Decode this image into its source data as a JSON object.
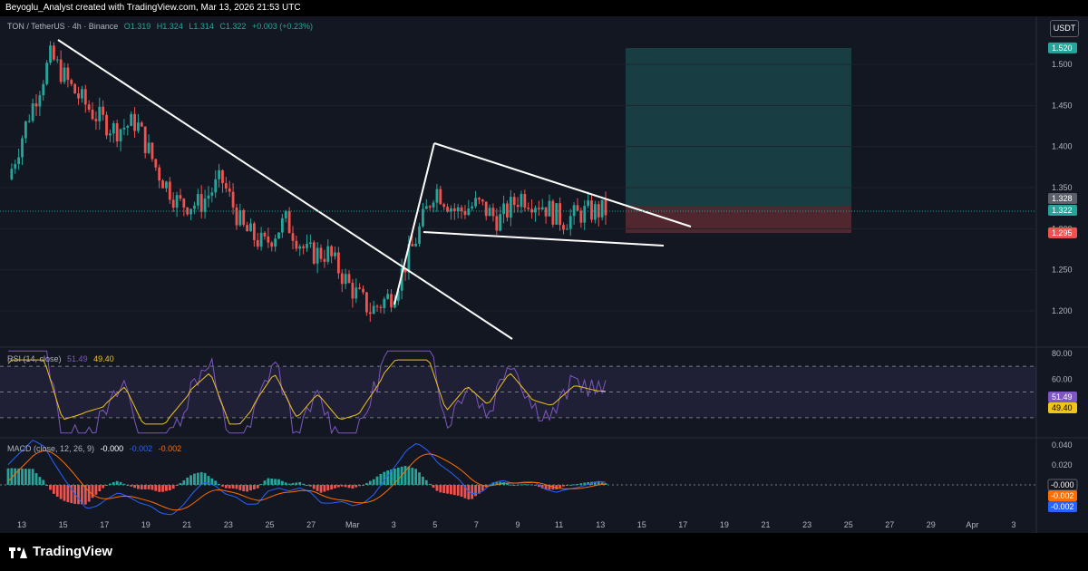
{
  "header": {
    "attribution": "Beyoglu_Analyst created with TradingView.com, Mar 13, 2026 21:53 UTC"
  },
  "legend": {
    "symbol": "TON / TetherUS · 4h · Binance",
    "open": "O1.319",
    "high": "H1.324",
    "low": "L1.314",
    "close": "C1.322",
    "change": "+0.003 (+0.23%)"
  },
  "currency_button": "USDT",
  "brand": "TradingView",
  "colors": {
    "up": "#26a69a",
    "down": "#ef5350",
    "rsi": "#7e57c2",
    "rsi_ma": "#f0c419",
    "macd": "#2962ff",
    "signal": "#ff6d00",
    "background": "#131722"
  },
  "chart_data": [
    {
      "type": "candlestick",
      "title": "TON / TetherUS · 4h · Binance",
      "x_ticks": [
        "13",
        "15",
        "17",
        "19",
        "21",
        "23",
        "25",
        "27",
        "Mar",
        "3",
        "5",
        "7",
        "9",
        "11",
        "13",
        "15",
        "17",
        "19",
        "21",
        "23",
        "25",
        "27",
        "29",
        "Apr",
        "3"
      ],
      "y_ticks": [
        1.2,
        1.25,
        1.3,
        1.35,
        1.4,
        1.45,
        1.5
      ],
      "y_range": [
        1.16,
        1.56
      ],
      "price_labels": [
        {
          "text": "1.520",
          "value": 1.52,
          "color": "#26a69a"
        },
        {
          "text": "1.328",
          "value": 1.328,
          "color": "#5d606b"
        },
        {
          "text": "1.322",
          "value": 1.322,
          "color": "#26a69a"
        },
        {
          "text": "1.295",
          "value": 1.295,
          "color": "#ef5350"
        }
      ],
      "close_path": [
        [
          "13",
          1.36
        ],
        [
          "14",
          1.44
        ],
        [
          "15",
          1.51
        ],
        [
          "16",
          1.47
        ],
        [
          "17",
          1.44
        ],
        [
          "18",
          1.42
        ],
        [
          "19",
          1.43
        ],
        [
          "20",
          1.37
        ],
        [
          "21",
          1.33
        ],
        [
          "22",
          1.33
        ],
        [
          "23",
          1.36
        ],
        [
          "24",
          1.3
        ],
        [
          "25",
          1.28
        ],
        [
          "26",
          1.31
        ],
        [
          "27",
          1.27
        ],
        [
          "28",
          1.27
        ],
        [
          "Mar 1",
          1.23
        ],
        [
          "Mar 2",
          1.2
        ],
        [
          "Mar 3",
          1.22
        ],
        [
          "Mar 4",
          1.28
        ],
        [
          "Mar 5",
          1.35
        ],
        [
          "Mar 6",
          1.32
        ],
        [
          "Mar 7",
          1.33
        ],
        [
          "Mar 8",
          1.31
        ],
        [
          "Mar 9",
          1.34
        ],
        [
          "Mar 10",
          1.33
        ],
        [
          "Mar 11",
          1.31
        ],
        [
          "Mar 12",
          1.32
        ],
        [
          "Mar 13",
          1.322
        ]
      ],
      "position": {
        "target": 1.52,
        "entry": 1.328,
        "stop": 1.295
      },
      "pattern": "descending trendline breakout, then bull flag"
    },
    {
      "type": "line",
      "title": "RSI (14, close)",
      "values_label": [
        "51.49",
        "49.40"
      ],
      "series": [
        {
          "name": "RSI",
          "last": 51.49
        },
        {
          "name": "RSI MA",
          "last": 49.4
        }
      ],
      "y_ticks": [
        "80.00",
        "60.00",
        "40.00"
      ],
      "levels": [
        70,
        50,
        30
      ],
      "price_labels": [
        {
          "text": "51.49",
          "color": "#7e57c2"
        },
        {
          "text": "49.40",
          "color": "#f0c419"
        }
      ]
    },
    {
      "type": "bar",
      "title": "MACD (close, 12, 26, 9)",
      "values_label": [
        "-0.000",
        "-0.002",
        "-0.002"
      ],
      "series": [
        {
          "name": "Histogram",
          "last": -0.0
        },
        {
          "name": "MACD",
          "last": -0.002
        },
        {
          "name": "Signal",
          "last": -0.002
        }
      ],
      "y_ticks": [
        "0.040",
        "0.020"
      ],
      "price_labels": [
        {
          "text": "-0.000",
          "color": "#ffffff"
        },
        {
          "text": "-0.002",
          "color": "#ff6d00"
        },
        {
          "text": "-0.002",
          "color": "#2962ff"
        }
      ]
    }
  ]
}
